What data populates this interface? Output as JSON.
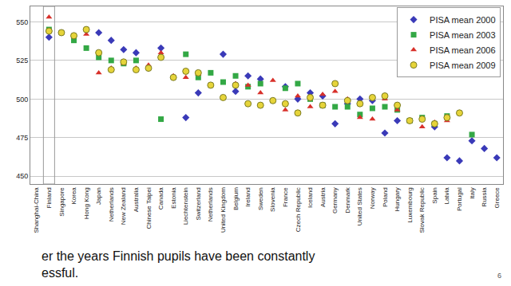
{
  "chart_data": {
    "type": "scatter",
    "categories": [
      "Shanghai-China",
      "Finland",
      "Singapore",
      "Korea",
      "Hong Kong",
      "Japan",
      "Netherlands",
      "New Zealand",
      "Australia",
      "Chinese Taipei",
      "Canada",
      "Estonia",
      "Liechtenstein",
      "Switzerland",
      "Netherlands",
      "United Kingdom",
      "Belgium",
      "Ireland",
      "Sweden",
      "Slovenia",
      "France",
      "Czech Republic",
      "Iceland",
      "Austria",
      "Germany",
      "Denmark",
      "United States",
      "Norway",
      "Poland",
      "Hungary",
      "Luxembourg",
      "Slovak Republic",
      "Spain",
      "Latvia",
      "Portugal",
      "Italy",
      "Russia",
      "Greece"
    ],
    "series": [
      {
        "name": "PISA mean 2000",
        "color": "#3a3ab8",
        "marker": "diamond",
        "values": [
          null,
          540,
          null,
          null,
          null,
          543,
          538,
          532,
          530,
          null,
          533,
          null,
          488,
          504,
          null,
          529,
          505,
          515,
          513,
          null,
          508,
          500,
          504,
          502,
          484,
          497,
          500,
          499,
          478,
          486,
          null,
          null,
          482,
          462,
          460,
          473,
          468,
          462
        ]
      },
      {
        "name": "PISA mean 2003",
        "color": "#33a845",
        "marker": "square",
        "values": [
          null,
          545,
          null,
          538,
          533,
          527,
          525,
          523,
          525,
          null,
          487,
          null,
          529,
          514,
          517,
          511,
          515,
          508,
          510,
          null,
          507,
          510,
          500,
          496,
          495,
          495,
          490,
          494,
          495,
          493,
          486,
          488,
          484,
          489,
          null,
          477,
          null,
          null
        ]
      },
      {
        "name": "PISA mean 2006",
        "color": "#d8302a",
        "marker": "triangle-up",
        "values": [
          null,
          553,
          null,
          null,
          542,
          517,
          520,
          523,
          520,
          522,
          530,
          515,
          514,
          516,
          null,
          null,
          510,
          509,
          504,
          512,
          493,
          502,
          495,
          503,
          505,
          500,
          488,
          487,
          500,
          493,
          486,
          482,
          485,
          486,
          null,
          null,
          null,
          null
        ]
      },
      {
        "name": "PISA mean 2009",
        "color": "#e6d43a",
        "marker": "circle",
        "values": [
          null,
          544,
          543,
          541,
          545,
          530,
          519,
          524,
          519,
          520,
          527,
          514,
          518,
          517,
          509,
          501,
          509,
          497,
          496,
          499,
          497,
          491,
          501,
          496,
          510,
          499,
          497,
          501,
          502,
          496,
          486,
          487,
          484,
          488,
          491,
          null,
          null,
          null
        ]
      }
    ],
    "ylim": [
      445,
      560
    ],
    "yticks": [
      450,
      475,
      500,
      525,
      550
    ],
    "grid": true,
    "legend": "upper right",
    "annotations": [
      "er the years Finnish pupils have been constantly",
      "essful.",
      "6"
    ]
  }
}
